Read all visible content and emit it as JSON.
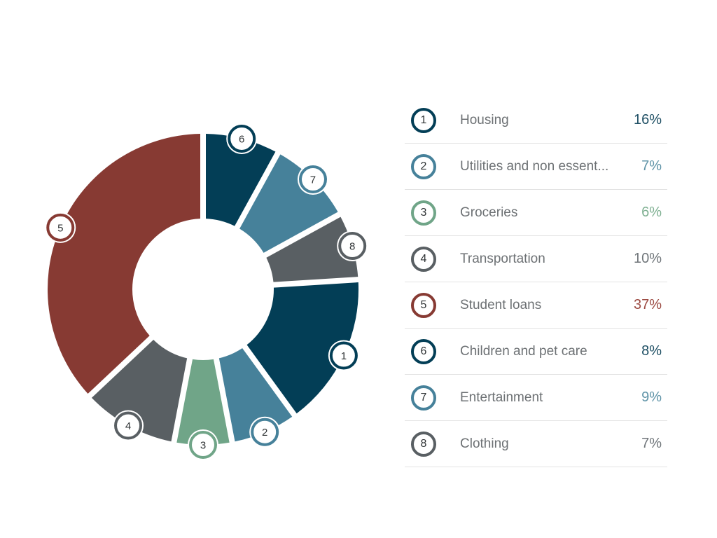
{
  "chart_data": {
    "type": "pie",
    "subtype": "donut",
    "title": "",
    "legend_position": "right",
    "direction": "clockwise",
    "start_offset_deg": 86.4,
    "total": 100,
    "background": "#ffffff",
    "label_color": "#6d7174",
    "marker_text_color": "#2f3335",
    "divider_color": "#e3e3e3",
    "items": [
      {
        "index": "1",
        "label": "Housing",
        "value": 16,
        "display": "16%",
        "color": "#033e56",
        "value_color": "#1d4e63"
      },
      {
        "index": "2",
        "label": "Utilities and non essent...",
        "value": 7,
        "display": "7%",
        "color": "#46819a",
        "value_color": "#5e93a7"
      },
      {
        "index": "3",
        "label": "Groceries",
        "value": 6,
        "display": "6%",
        "color": "#70a588",
        "value_color": "#7fb092"
      },
      {
        "index": "4",
        "label": "Transportation",
        "value": 10,
        "display": "10%",
        "color": "#595f63",
        "value_color": "#70767a"
      },
      {
        "index": "5",
        "label": "Student loans",
        "value": 37,
        "display": "37%",
        "color": "#873a33",
        "value_color": "#9c4a42"
      },
      {
        "index": "6",
        "label": "Children and pet care",
        "value": 8,
        "display": "8%",
        "color": "#033e56",
        "value_color": "#1d4e63"
      },
      {
        "index": "7",
        "label": "Entertainment",
        "value": 9,
        "display": "9%",
        "color": "#46819a",
        "value_color": "#5e93a7"
      },
      {
        "index": "8",
        "label": "Clothing",
        "value": 7,
        "display": "7%",
        "color": "#595f63",
        "value_color": "#70767a"
      }
    ]
  }
}
